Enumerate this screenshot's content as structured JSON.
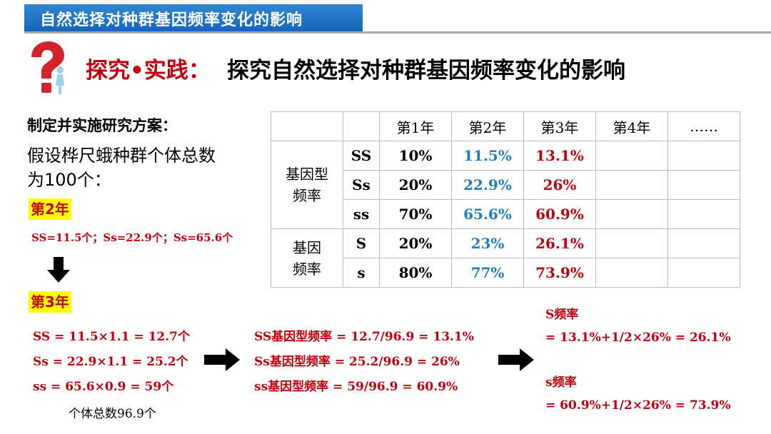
{
  "header": {
    "banner_title": "自然选择对种群基因频率变化的影响"
  },
  "title": {
    "prefix": "探究•实践：",
    "main": "探究自然选择对种群基因频率变化的影响"
  },
  "left": {
    "plan_heading": "制定并实施研究方案：",
    "assumption_line1": "假设桦尺蛾种群个体总数",
    "assumption_line2": "为100个：",
    "year2_tag": "第2年",
    "year2_counts": "SS=11.5个；Ss=22.9个；Ss=65.6个",
    "year3_tag": "第3年"
  },
  "calculations": {
    "counts": [
      "SS = 11.5×1.1 = 12.7个",
      "Ss = 22.9×1.1 = 25.2个",
      "ss = 65.6×0.9 = 59个"
    ],
    "total": "个体总数96.9个",
    "genotype_freqs": [
      "SS基因型频率 = 12.7/96.9 = 13.1%",
      "Ss基因型频率 = 25.2/96.9 = 26%",
      "ss基因型频率 = 59/96.9 = 60.9%"
    ],
    "allele_S_label": "S频率",
    "allele_S_formula": "= 13.1%+1/2×26% = 26.1%",
    "allele_s_label": "s频率",
    "allele_s_formula": "= 60.9%+1/2×26% = 73.9%"
  },
  "table": {
    "headers": [
      "第1年",
      "第2年",
      "第3年",
      "第4年",
      "……"
    ],
    "group_genotype": "基因型频率",
    "group_genotype_line1": "基因型",
    "group_genotype_line2": "频率",
    "group_allele_line1": "基因",
    "group_allele_line2": "频率",
    "rows": [
      {
        "label": "SS",
        "y1": "10%",
        "y2": "11.5%",
        "y3": "13.1%"
      },
      {
        "label": "Ss",
        "y1": "20%",
        "y2": "22.9%",
        "y3": "26%"
      },
      {
        "label": "ss",
        "y1": "70%",
        "y2": "65.6%",
        "y3": "60.9%"
      },
      {
        "label": "S",
        "y1": "20%",
        "y2": "23%",
        "y3": "26.1%"
      },
      {
        "label": "s",
        "y1": "80%",
        "y2": "77%",
        "y3": "73.9%"
      }
    ]
  },
  "colors": {
    "banner": "#1665b8",
    "accent_red": "#c0000c",
    "accent_blue": "#1f7fc2",
    "highlight": "#ffff00"
  }
}
